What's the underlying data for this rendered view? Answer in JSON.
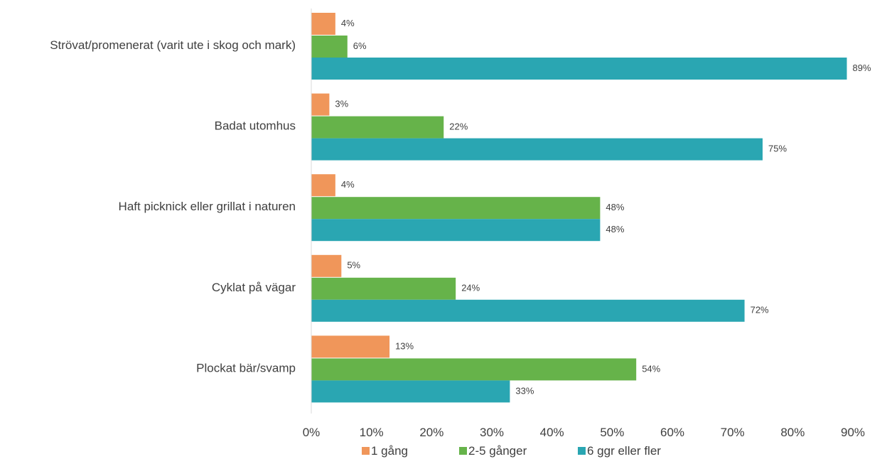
{
  "chart_data": {
    "type": "bar",
    "orientation": "horizontal",
    "categories": [
      "Strövat/promenerat (varit ute i skog och mark)",
      "Badat utomhus",
      "Haft picknick eller grillat i naturen",
      "Cyklat på vägar",
      "Plockat bär/svamp"
    ],
    "series": [
      {
        "name": "1 gång",
        "color": "#f0965a",
        "values": [
          4,
          3,
          4,
          5,
          13
        ],
        "labels": [
          "4%",
          "3%",
          "4%",
          "5%",
          "13%"
        ]
      },
      {
        "name": "2-5 gånger",
        "color": "#66b34a",
        "values": [
          6,
          22,
          48,
          24,
          54
        ],
        "labels": [
          "6%",
          "22%",
          "48%",
          "24%",
          "54%"
        ]
      },
      {
        "name": "6 ggr eller fler",
        "color": "#2aa6b2",
        "values": [
          89,
          75,
          48,
          72,
          33
        ],
        "labels": [
          "89%",
          "75%",
          "48%",
          "72%",
          "33%"
        ]
      }
    ],
    "xlim": [
      0,
      90
    ],
    "xticks": [
      0,
      10,
      20,
      30,
      40,
      50,
      60,
      70,
      80,
      90
    ],
    "xtick_labels": [
      "0%",
      "10%",
      "20%",
      "30%",
      "40%",
      "50%",
      "60%",
      "70%",
      "80%",
      "90%"
    ],
    "grid": false,
    "legend_position": "bottom",
    "title": "",
    "xlabel": "",
    "ylabel": ""
  }
}
